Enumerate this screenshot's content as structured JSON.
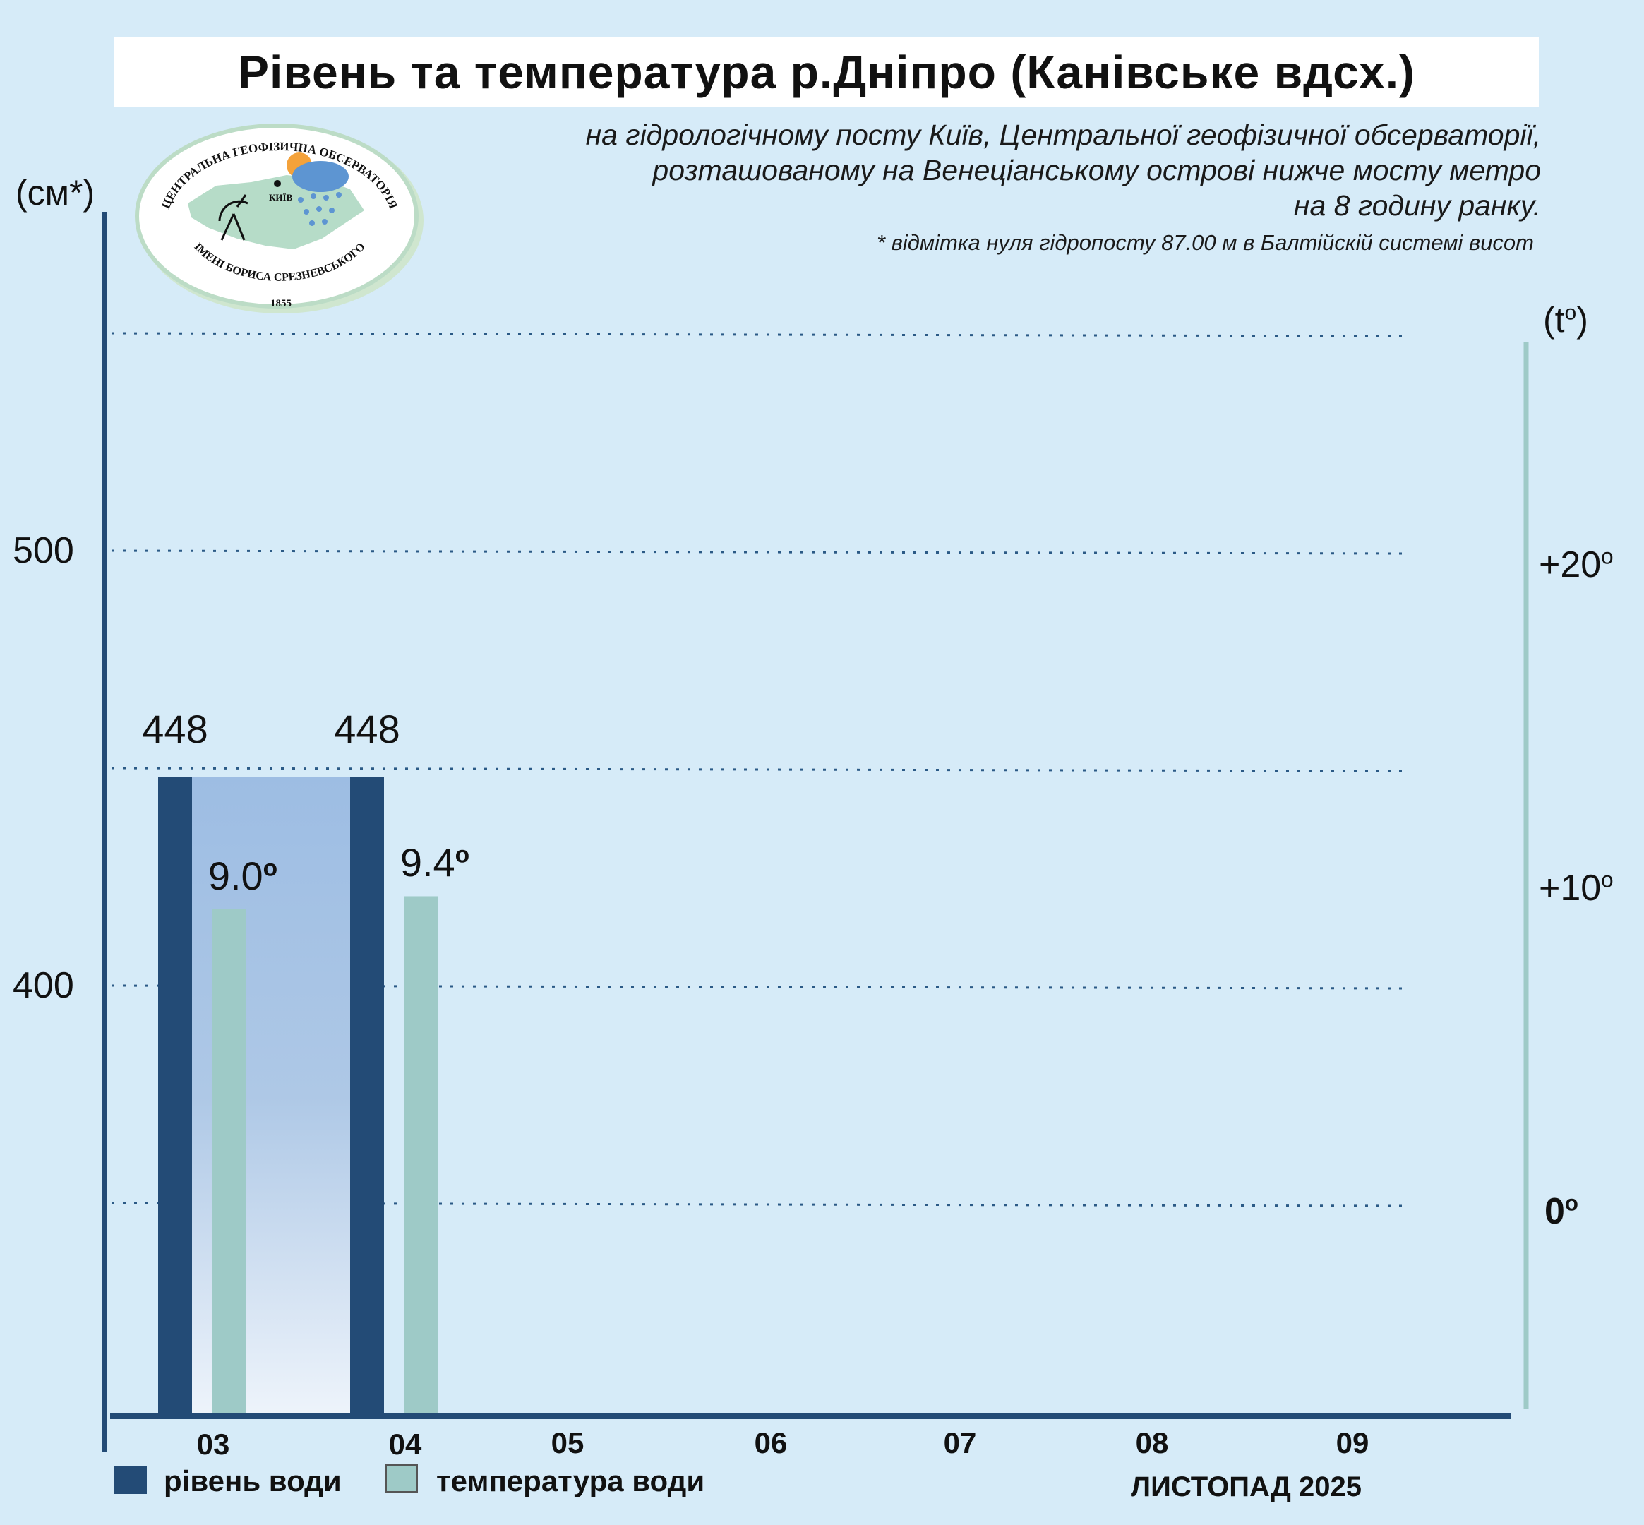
{
  "title": "Рівень та температура р.Дніпро (Канівське вдсх.)",
  "subtitle_lines": [
    "на гідрологічному посту Київ, Центральної геофізичної обсерваторії,",
    "розташованому на Венеціанському острові нижче мосту метро",
    "на 8 годину ранку."
  ],
  "footnote": "* відмітка нуля гідропосту 87.00 м в Балтійскій системі висот",
  "logo": {
    "text_top": "ЦЕНТРАЛЬНА ГЕОФІЗИЧНА ОБСЕРВАТОРІЯ",
    "text_bottom": "ІМЕНІ БОРИСА СРЕЗНЕВСЬКОГО",
    "year": "1855",
    "city": "КИЇВ"
  },
  "chart_data": {
    "type": "bar",
    "categories": [
      "03",
      "04",
      "05",
      "06",
      "07",
      "08",
      "09"
    ],
    "series": [
      {
        "name": "рівень води",
        "values": [
          448,
          448,
          null,
          null,
          null,
          null,
          null
        ],
        "labels": [
          "448",
          "448"
        ],
        "color": "#234b76",
        "axis": "left"
      },
      {
        "name": "температура води",
        "values": [
          9.0,
          9.4,
          null,
          null,
          null,
          null,
          null
        ],
        "labels": [
          "9.0",
          "9.4"
        ],
        "color": "#9ecac7",
        "axis": "right"
      }
    ],
    "y_left": {
      "unit": "(см*)",
      "ticks": [
        {
          "value": 400,
          "label": "400"
        },
        {
          "value": 500,
          "label": "500"
        }
      ],
      "gridlines": [
        350,
        400,
        450,
        500,
        550
      ],
      "range": [
        300,
        550
      ]
    },
    "y_right": {
      "unit": "(t",
      "unit_sup": "o",
      "unit_end": ")",
      "ticks": [
        {
          "value": 0,
          "label": "0"
        },
        {
          "value": 10,
          "label": "+10"
        },
        {
          "value": 20,
          "label": "+20"
        }
      ],
      "degree": "o"
    },
    "period_label": "ЛИСТОПАД 2025",
    "grid": true
  },
  "colors": {
    "background": "#d6ebf8",
    "level_bar": "#234b76",
    "temp_bar": "#9ecac7",
    "gradient_top": "#9dbde3",
    "grid": "#2b5a86"
  }
}
